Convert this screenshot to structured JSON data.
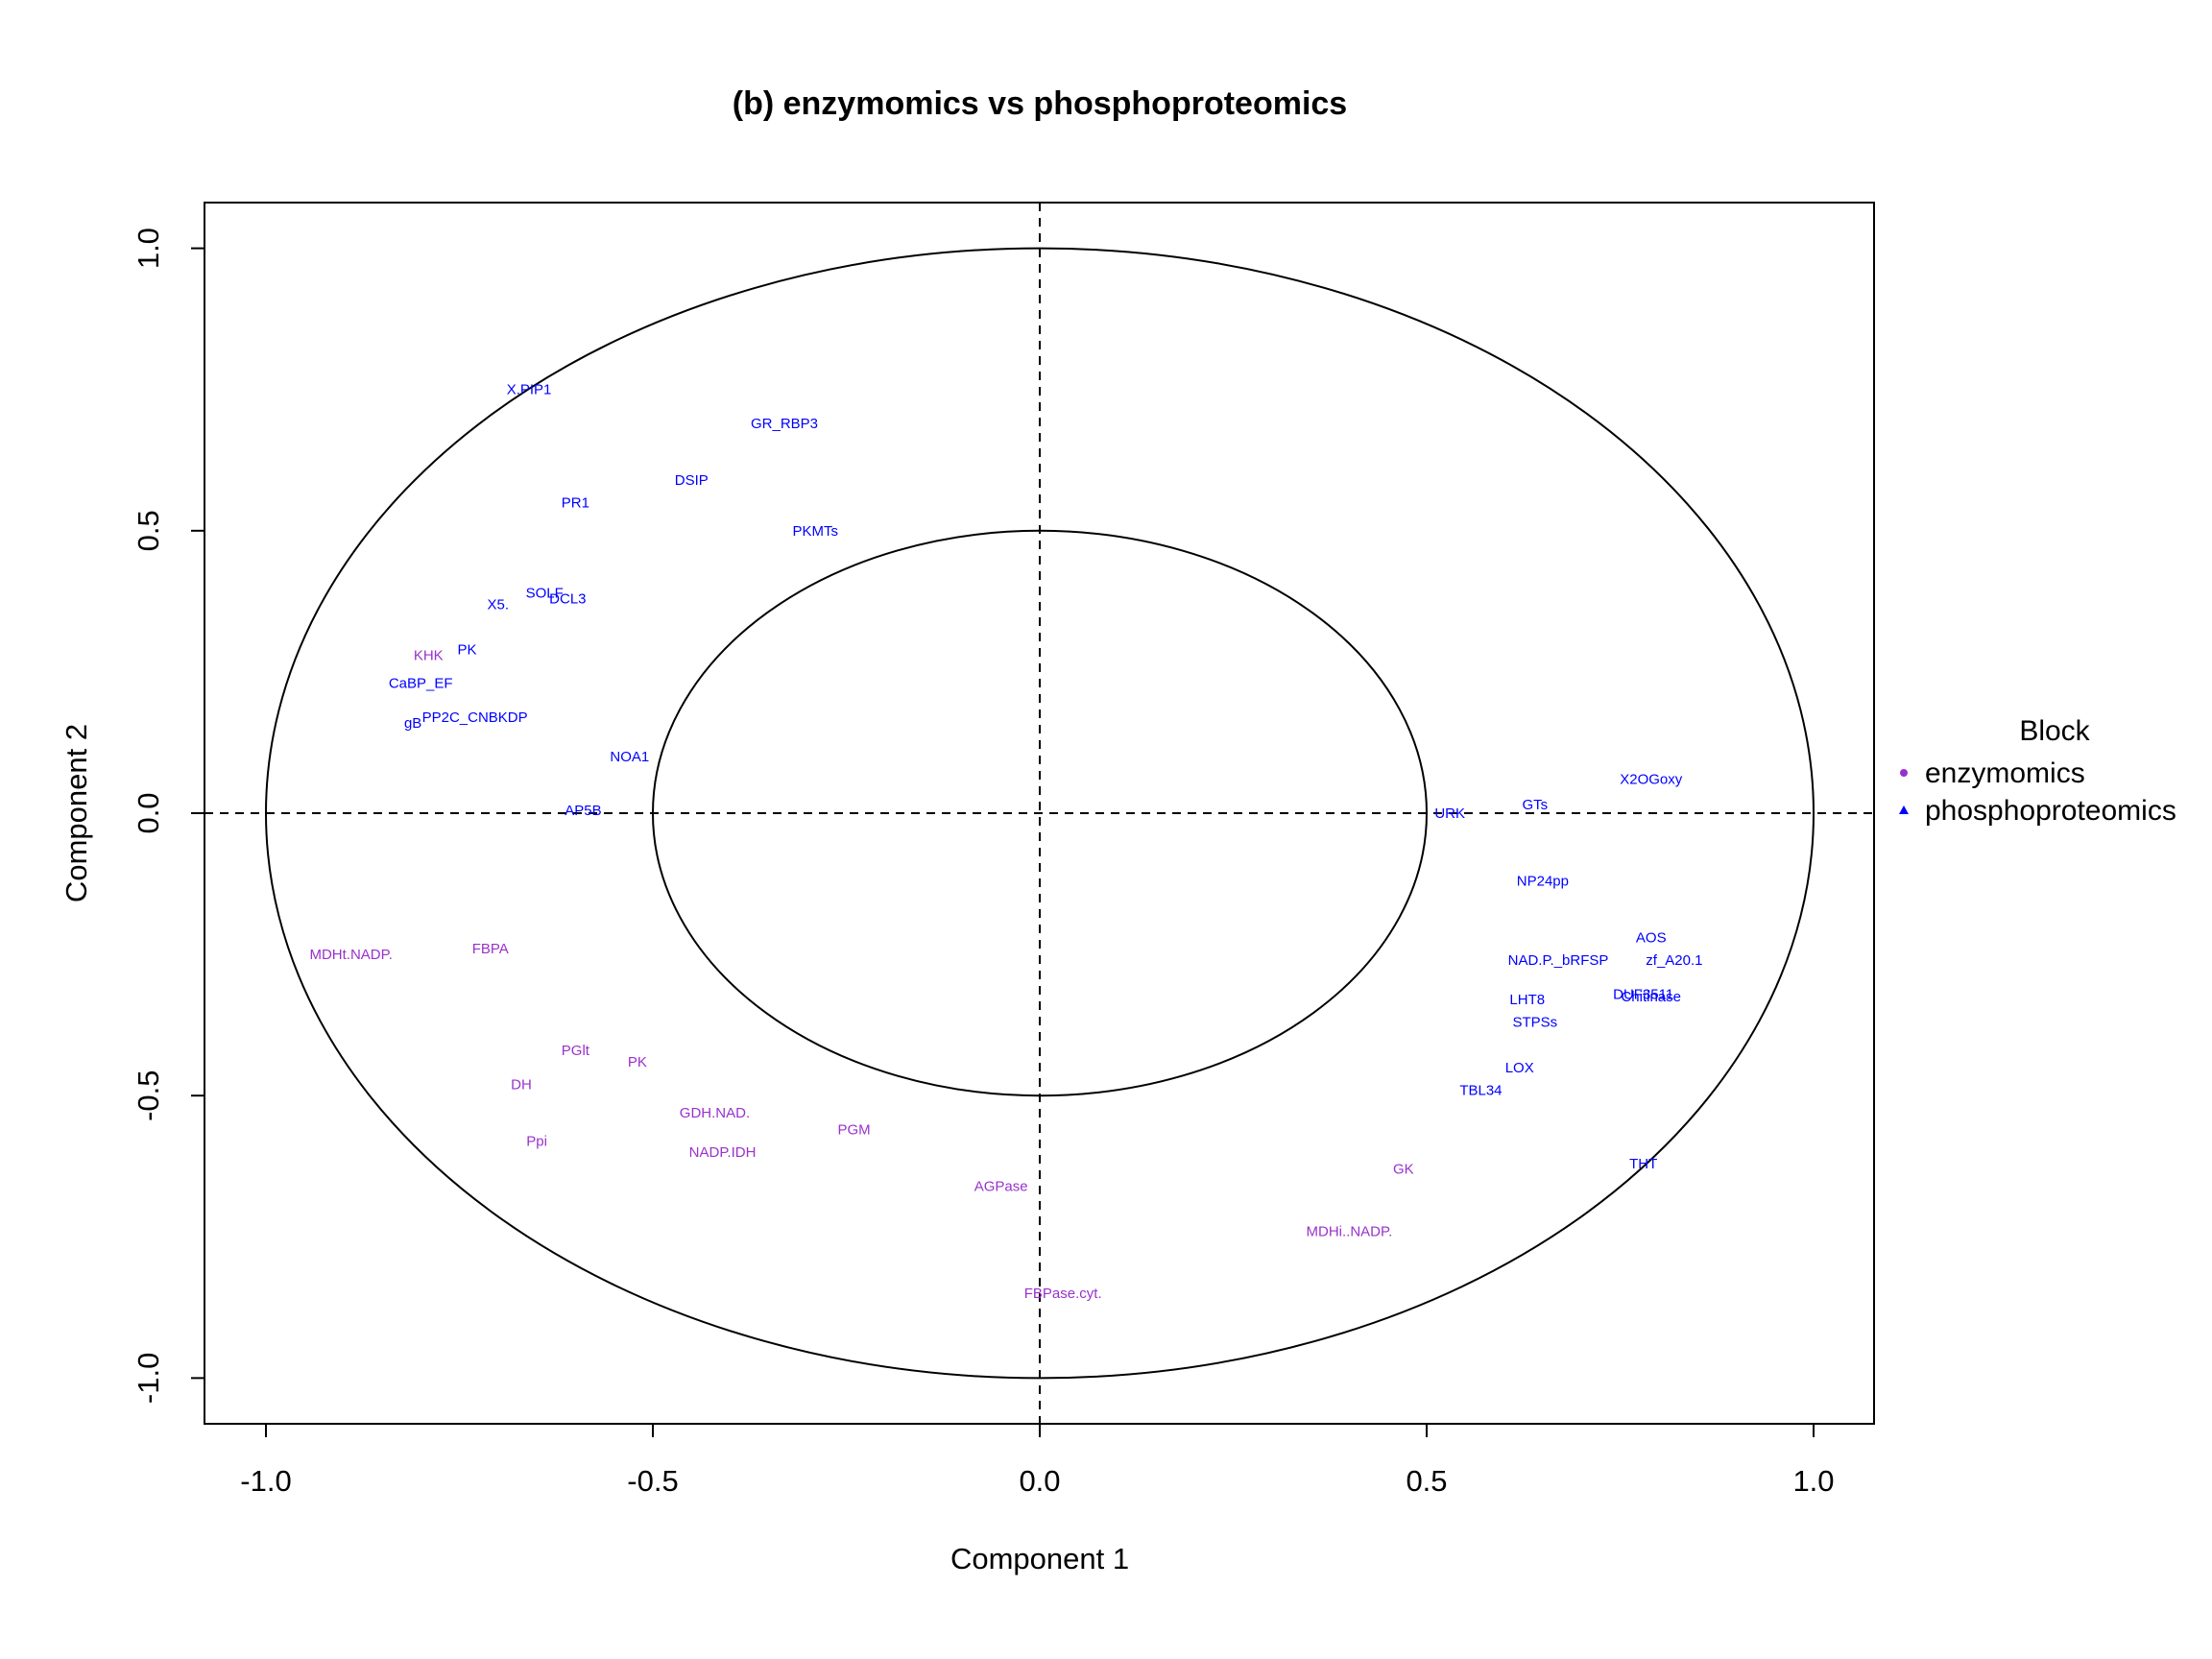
{
  "chart_data": {
    "type": "scatter",
    "title": "(b) enzymomics vs phosphoproteomics",
    "xlabel": "Component  1",
    "ylabel": "Component  2",
    "xlim": [
      -1.08,
      1.08
    ],
    "ylim": [
      -1.08,
      1.08
    ],
    "x_ticks": [
      -1.0,
      -0.5,
      0.0,
      0.5,
      1.0
    ],
    "x_tick_labels": [
      "-1.0",
      "-0.5",
      "0.0",
      "0.5",
      "1.0"
    ],
    "y_ticks": [
      -1.0,
      -0.5,
      0.0,
      0.5,
      1.0
    ],
    "y_tick_labels": [
      "-1.0",
      "-0.5",
      "0.0",
      "0.5",
      "1.0"
    ],
    "circles": [
      1.0,
      0.5
    ],
    "reference_lines": {
      "x": 0,
      "y": 0,
      "style": "dashed"
    },
    "grid": false,
    "legend": {
      "title": "Block",
      "placement": "right",
      "items": [
        {
          "name": "enzymomics",
          "color": "#9932CC",
          "marker": "circle"
        },
        {
          "name": "phosphoproteomics",
          "color": "#0000FF",
          "marker": "triangle"
        }
      ]
    },
    "series": [
      {
        "name": "enzymomics",
        "color": "#9932CC",
        "points": [
          {
            "label": "KHK",
            "x": -0.79,
            "y": 0.28
          },
          {
            "label": "MDHt.NADP.",
            "x": -0.89,
            "y": -0.25
          },
          {
            "label": "FBPA",
            "x": -0.71,
            "y": -0.24
          },
          {
            "label": "PGlt",
            "x": -0.6,
            "y": -0.42
          },
          {
            "label": "PK",
            "x": -0.52,
            "y": -0.44
          },
          {
            "label": "DH",
            "x": -0.67,
            "y": -0.48
          },
          {
            "label": "Ppi",
            "x": -0.65,
            "y": -0.58
          },
          {
            "label": "GDH.NAD.",
            "x": -0.42,
            "y": -0.53
          },
          {
            "label": "NADP.IDH",
            "x": -0.41,
            "y": -0.6
          },
          {
            "label": "PGM",
            "x": -0.24,
            "y": -0.56
          },
          {
            "label": "AGPase",
            "x": -0.05,
            "y": -0.66
          },
          {
            "label": "FBPase.cyt.",
            "x": 0.03,
            "y": -0.85
          },
          {
            "label": "GK",
            "x": 0.47,
            "y": -0.63
          },
          {
            "label": "MDHi..NADP.",
            "x": 0.4,
            "y": -0.74
          }
        ]
      },
      {
        "name": "phosphoproteomics",
        "color": "#0000FF",
        "points": [
          {
            "label": "X.PIP1",
            "x": -0.66,
            "y": 0.75
          },
          {
            "label": "GR_RBP3",
            "x": -0.33,
            "y": 0.69
          },
          {
            "label": "DSIP",
            "x": -0.45,
            "y": 0.59
          },
          {
            "label": "PR1",
            "x": -0.6,
            "y": 0.55
          },
          {
            "label": "PKMTs",
            "x": -0.29,
            "y": 0.5
          },
          {
            "label": "SOLF",
            "x": -0.64,
            "y": 0.39
          },
          {
            "label": "DCL3",
            "x": -0.61,
            "y": 0.38
          },
          {
            "label": "X5.",
            "x": -0.7,
            "y": 0.37
          },
          {
            "label": "PK",
            "x": -0.74,
            "y": 0.29
          },
          {
            "label": "CaBP_EF",
            "x": -0.8,
            "y": 0.23
          },
          {
            "label": "PP2C_CNBKDP",
            "x": -0.73,
            "y": 0.17
          },
          {
            "label": "gB",
            "x": -0.81,
            "y": 0.16
          },
          {
            "label": "NOA1",
            "x": -0.53,
            "y": 0.1
          },
          {
            "label": "AP5B",
            "x": -0.59,
            "y": 0.005
          },
          {
            "label": "URK",
            "x": 0.53,
            "y": 0.0
          },
          {
            "label": "GTs",
            "x": 0.64,
            "y": 0.015
          },
          {
            "label": "X2OGoxy",
            "x": 0.79,
            "y": 0.06
          },
          {
            "label": "NP24pp",
            "x": 0.65,
            "y": -0.12
          },
          {
            "label": "AOS",
            "x": 0.79,
            "y": -0.22
          },
          {
            "label": "zf_A20.1",
            "x": 0.82,
            "y": -0.26
          },
          {
            "label": "NAD.P._bRFSP",
            "x": 0.67,
            "y": -0.26
          },
          {
            "label": "DUF3511",
            "x": 0.78,
            "y": -0.32
          },
          {
            "label": "Chitinase",
            "x": 0.79,
            "y": -0.325
          },
          {
            "label": "LHT8",
            "x": 0.63,
            "y": -0.33
          },
          {
            "label": "STPSs",
            "x": 0.64,
            "y": -0.37
          },
          {
            "label": "LOX",
            "x": 0.62,
            "y": -0.45
          },
          {
            "label": "TBL34",
            "x": 0.57,
            "y": -0.49
          },
          {
            "label": "THT",
            "x": 0.78,
            "y": -0.62
          }
        ]
      }
    ]
  }
}
